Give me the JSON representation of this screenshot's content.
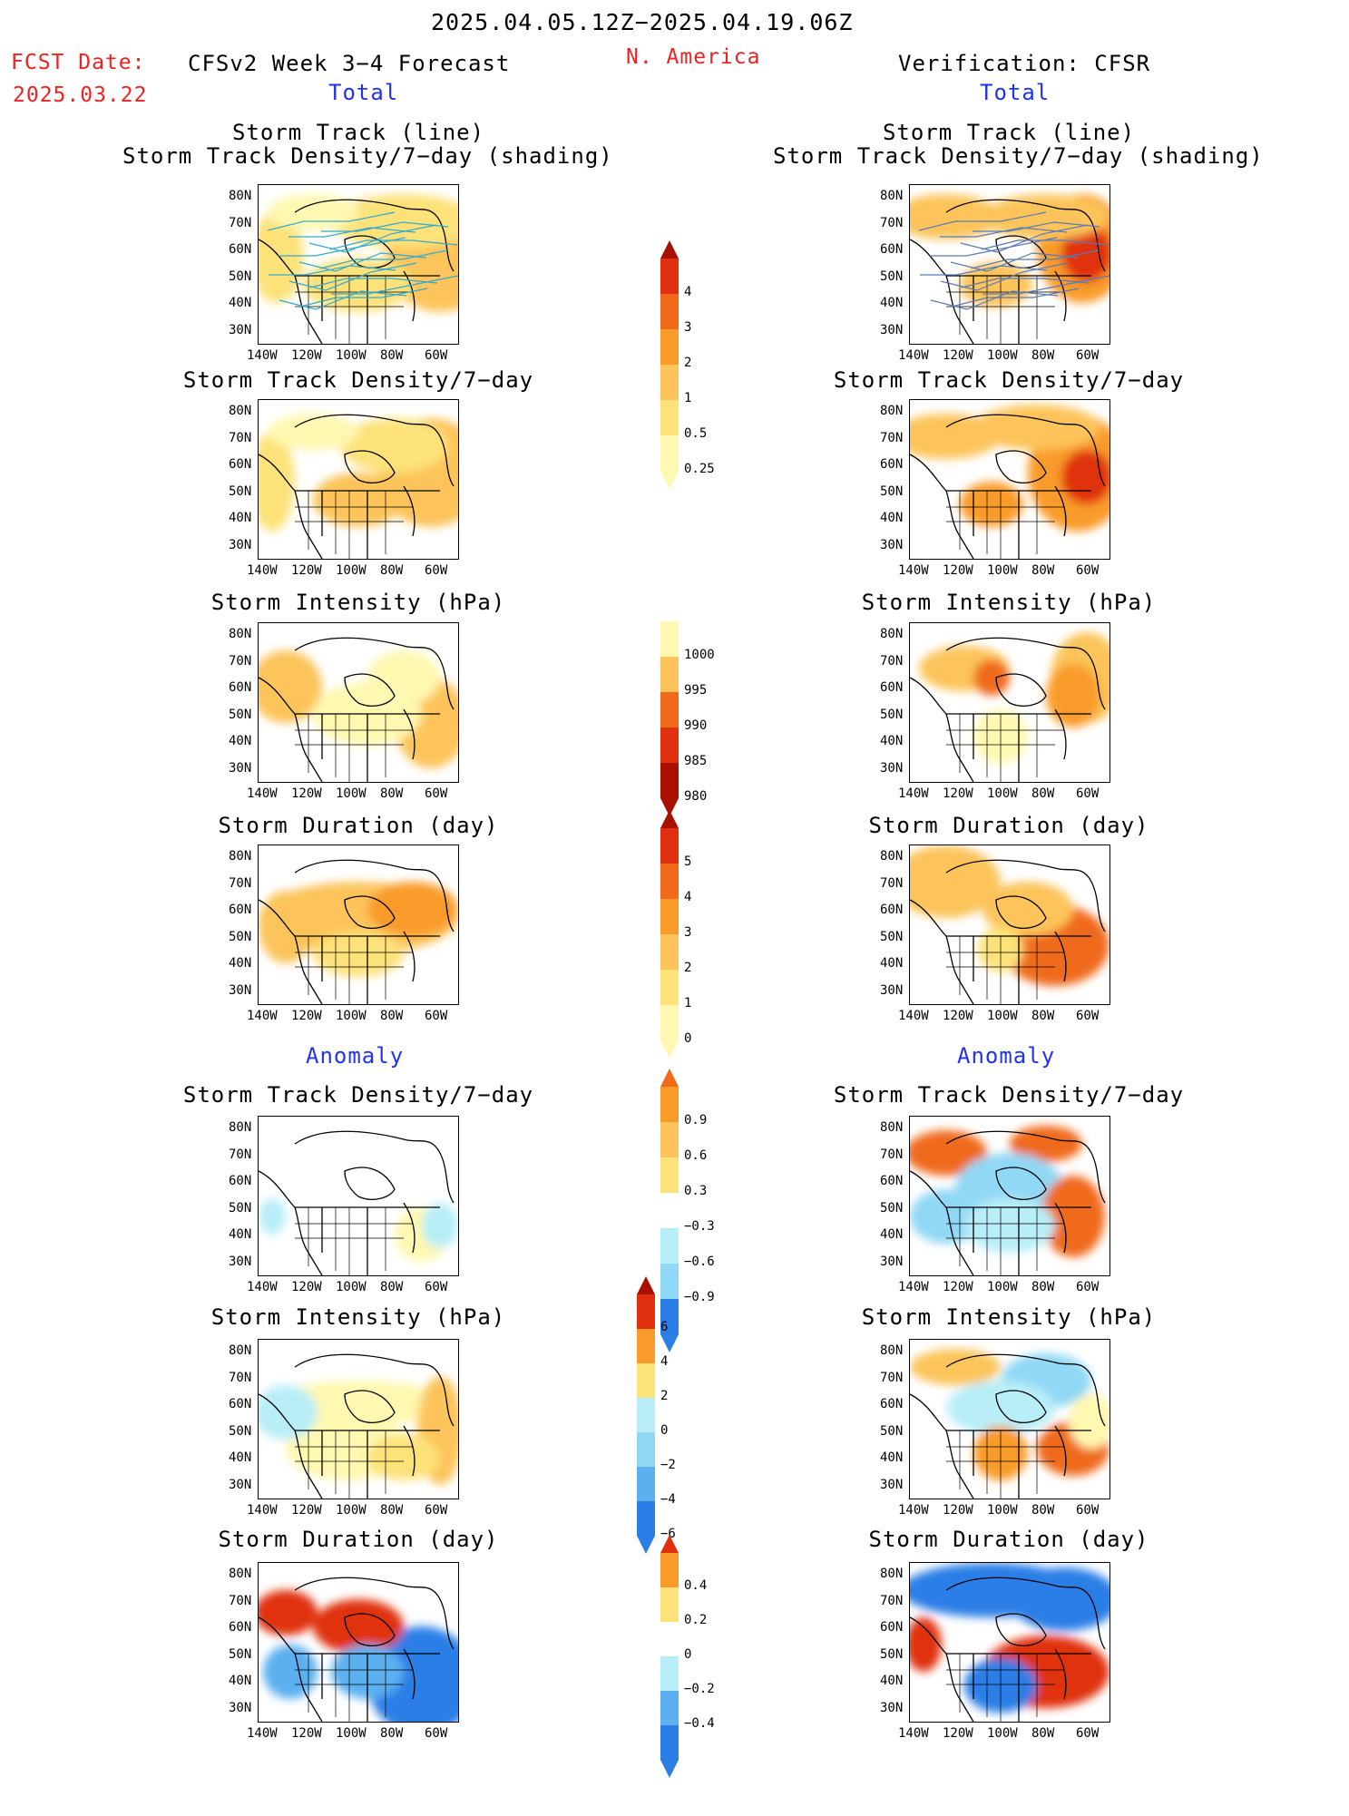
{
  "header": {
    "date_range": "2025.04.05.12Z−2025.04.19.06Z",
    "region": "N. America",
    "fcst_label": "FCST Date:",
    "fcst_date": "2025.03.22",
    "model_title": "CFSv2 Week 3−4 Forecast",
    "verification_title": "Verification: CFSR",
    "left_total": "Total",
    "right_total": "Total",
    "left_anomaly": "Anomaly",
    "right_anomaly": "Anomaly"
  },
  "panel_titles": {
    "track_line": "Storm Track (line)",
    "track_shading": "Storm Track Density/7−day (shading)",
    "density": "Storm Track Density/7−day",
    "intensity": "Storm Intensity (hPa)",
    "duration": "Storm Duration (day)"
  },
  "axes": {
    "lat_labels": [
      "80N",
      "70N",
      "60N",
      "50N",
      "40N",
      "30N"
    ],
    "lon_labels": [
      "140W",
      "120W",
      "100W",
      "80W",
      "60W"
    ]
  },
  "colorbars": {
    "density_total": [
      "4",
      "3",
      "2",
      "1",
      "0.5",
      "0.25"
    ],
    "intensity_total": [
      "1000",
      "995",
      "990",
      "985",
      "980"
    ],
    "duration_total": [
      "5",
      "4",
      "3",
      "2",
      "1",
      "0"
    ],
    "density_anom": [
      "0.9",
      "0.6",
      "0.3",
      "−0.3",
      "−0.6",
      "−0.9"
    ],
    "intensity_anom": [
      "6",
      "4",
      "2",
      "0",
      "−2",
      "−4",
      "−6"
    ],
    "duration_anom": [
      "0.4",
      "0.2",
      "0",
      "−0.2",
      "−0.4"
    ]
  },
  "colors": {
    "warm": [
      "#fff8b0",
      "#fde27a",
      "#fcc45a",
      "#f99b2a",
      "#f06a1a",
      "#e03010",
      "#a81000"
    ],
    "cool": [
      "#b8eef8",
      "#90d8f5",
      "#5cb0f0",
      "#2a7ee6",
      "#1050d0"
    ]
  }
}
